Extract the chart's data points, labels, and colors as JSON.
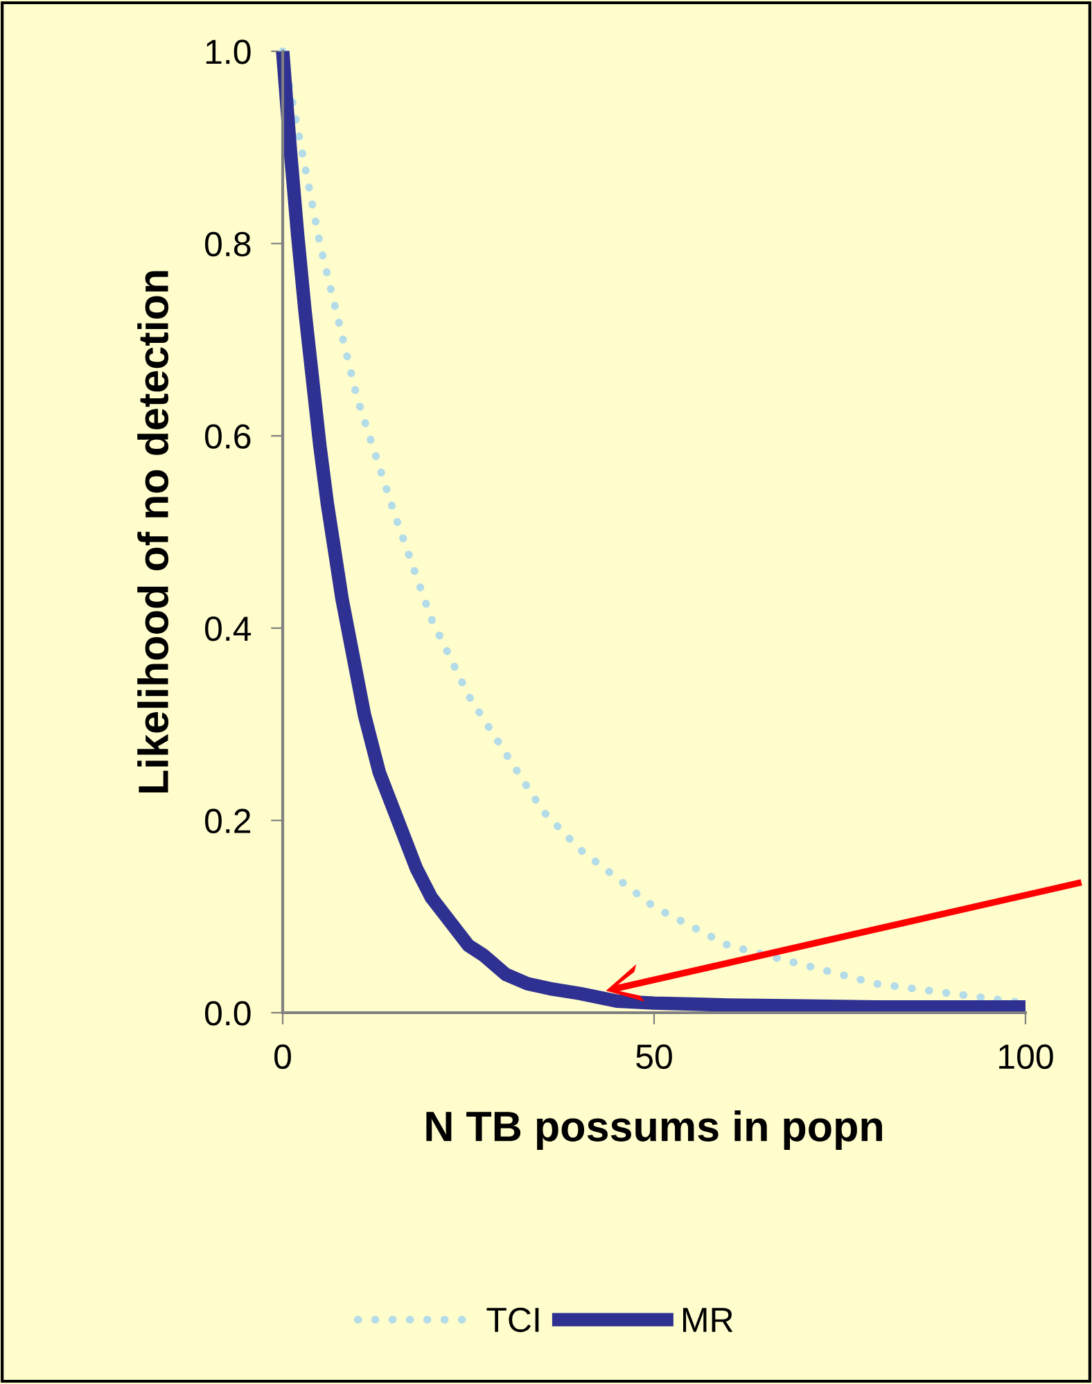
{
  "chart_data": {
    "type": "line",
    "xlabel": "N TB possums in popn",
    "ylabel": "Likelihood of no detection",
    "xlim": [
      0,
      100
    ],
    "ylim": [
      0,
      1
    ],
    "xticks": [
      0,
      50,
      100
    ],
    "yticks": [
      {
        "value": 0,
        "label": "0.0"
      },
      {
        "value": 0.2,
        "label": "0.2"
      },
      {
        "value": 0.4,
        "label": "0.4"
      },
      {
        "value": 0.6,
        "label": "0.6"
      },
      {
        "value": 0.8,
        "label": "0.8"
      },
      {
        "value": 1,
        "label": "1.0"
      }
    ],
    "grid": false,
    "legend": "bottom",
    "series": [
      {
        "name": "TCI",
        "color": "#b4dce8",
        "line_style": "dotted",
        "x": [
          0,
          5,
          10,
          15,
          20,
          25,
          30,
          35,
          40,
          45,
          50,
          55,
          60,
          70,
          80,
          90,
          100
        ],
        "values": [
          1,
          0.8,
          0.64,
          0.52,
          0.41,
          0.33,
          0.27,
          0.21,
          0.17,
          0.14,
          0.11,
          0.09,
          0.07,
          0.05,
          0.03,
          0.02,
          0.01
        ]
      },
      {
        "name": "MR",
        "color": "#2e3192",
        "line_style": "solid",
        "x": [
          0,
          1,
          2,
          3,
          4,
          5,
          6,
          7,
          8,
          9,
          10,
          11,
          12,
          13,
          14,
          15,
          16,
          18,
          20,
          23,
          25,
          27,
          30,
          33,
          36,
          40,
          45,
          50,
          60,
          70,
          80,
          90,
          100
        ],
        "values": [
          1,
          0.9,
          0.81,
          0.73,
          0.66,
          0.59,
          0.53,
          0.48,
          0.43,
          0.39,
          0.35,
          0.31,
          0.28,
          0.25,
          0.23,
          0.21,
          0.19,
          0.15,
          0.12,
          0.09,
          0.07,
          0.06,
          0.04,
          0.03,
          0.025,
          0.02,
          0.012,
          0.01,
          0.008,
          0.007,
          0.006,
          0.006,
          0.006
        ]
      }
    ]
  }
}
